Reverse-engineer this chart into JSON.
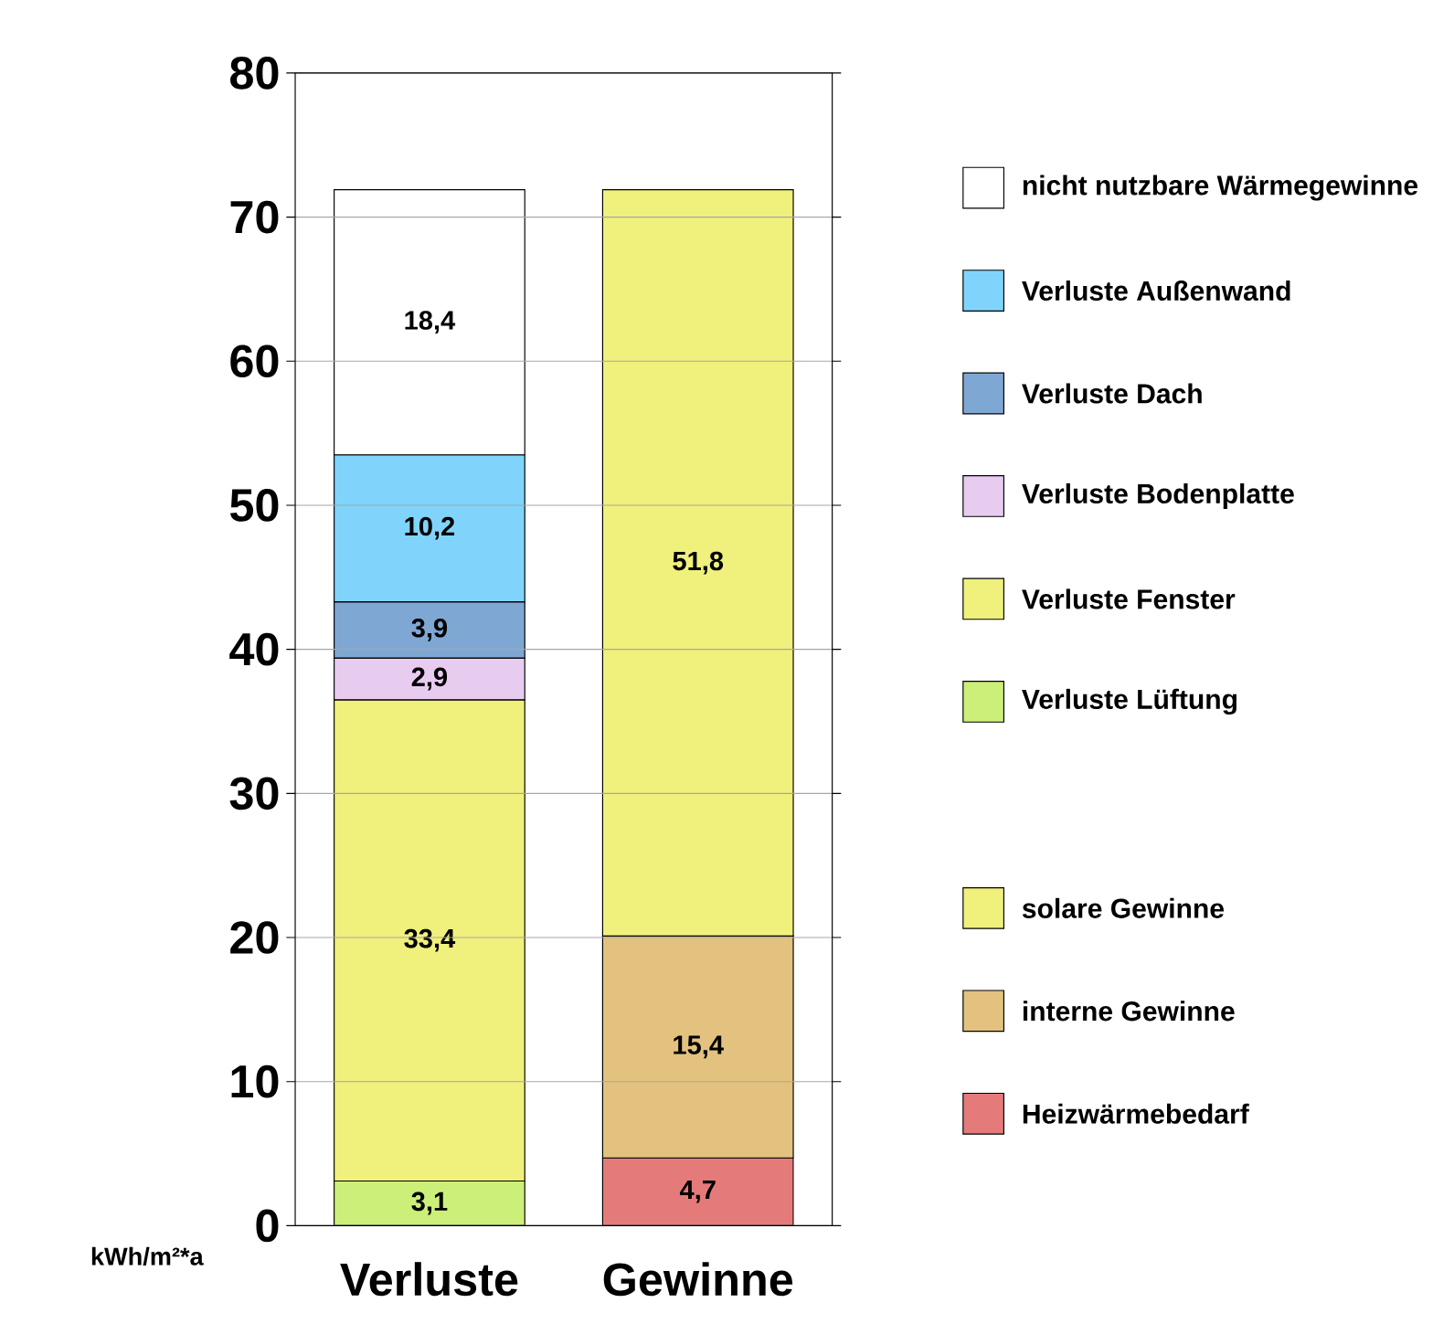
{
  "chart_data": {
    "type": "bar",
    "stacked": true,
    "categories": [
      "Verluste",
      "Gewinne"
    ],
    "ylabel": "kWh/m²*a",
    "ylim": [
      0,
      80
    ],
    "yticks": [
      0,
      10,
      20,
      30,
      40,
      50,
      60,
      70,
      80
    ],
    "grid": "y",
    "legend": "right",
    "series": [
      {
        "name": "Verluste Lüftung",
        "color": "#ccef7a",
        "values": [
          3.1,
          null
        ],
        "value_labels": [
          "3,1",
          null
        ]
      },
      {
        "name": "Verluste Fenster",
        "color": "#f0f07c",
        "values": [
          33.4,
          null
        ],
        "value_labels": [
          "33,4",
          null
        ]
      },
      {
        "name": "Verluste Bodenplatte",
        "color": "#e8ccf0",
        "values": [
          2.9,
          null
        ],
        "value_labels": [
          "2,9",
          null
        ]
      },
      {
        "name": "Verluste Dach",
        "color": "#7fa7d4",
        "values": [
          3.9,
          null
        ],
        "value_labels": [
          "3,9",
          null
        ]
      },
      {
        "name": "Verluste Außenwand",
        "color": "#80d4fc",
        "values": [
          10.2,
          null
        ],
        "value_labels": [
          "10,2",
          null
        ]
      },
      {
        "name": "nicht nutzbare Wärmegewinne",
        "color": "#ffffff",
        "values": [
          18.4,
          null
        ],
        "value_labels": [
          "18,4",
          null
        ]
      },
      {
        "name": "Heizwärmebedarf",
        "color": "#e47b7a",
        "values": [
          null,
          4.7
        ],
        "value_labels": [
          null,
          "4,7"
        ]
      },
      {
        "name": "interne Gewinne",
        "color": "#e3c27f",
        "values": [
          null,
          15.4
        ],
        "value_labels": [
          null,
          "15,4"
        ]
      },
      {
        "name": "solare Gewinne",
        "color": "#f0f07c",
        "values": [
          null,
          51.8
        ],
        "value_labels": [
          null,
          "51,8"
        ]
      }
    ]
  }
}
